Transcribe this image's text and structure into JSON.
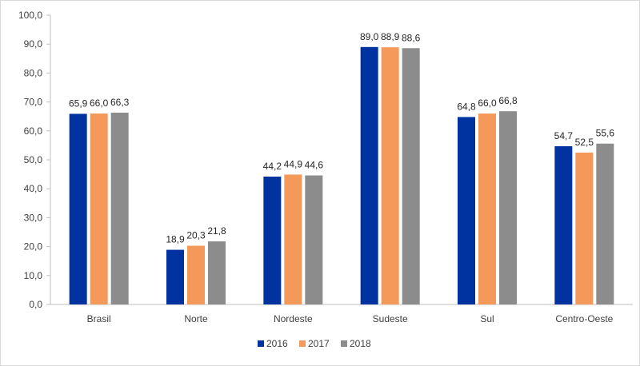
{
  "chart_data": {
    "type": "bar",
    "title": "",
    "xlabel": "",
    "ylabel": "",
    "categories": [
      "Brasil",
      "Norte",
      "Nordeste",
      "Sudeste",
      "Sul",
      "Centro-Oeste"
    ],
    "series": [
      {
        "name": "2016",
        "color": "#0033a0",
        "values": [
          65.9,
          18.9,
          44.2,
          89.0,
          64.8,
          54.7
        ],
        "labels": [
          "65,9",
          "18,9",
          "44,2",
          "89,0",
          "64,8",
          "54,7"
        ]
      },
      {
        "name": "2017",
        "color": "#f4995a",
        "values": [
          66.0,
          20.3,
          44.9,
          88.9,
          66.0,
          52.5
        ],
        "labels": [
          "66,0",
          "20,3",
          "44,9",
          "88,9",
          "66,0",
          "52,5"
        ]
      },
      {
        "name": "2018",
        "color": "#8c8c8c",
        "values": [
          66.3,
          21.8,
          44.6,
          88.6,
          66.8,
          55.6
        ],
        "labels": [
          "66,3",
          "21,8",
          "44,6",
          "88,6",
          "66,8",
          "55,6"
        ]
      }
    ],
    "ylim": [
      0,
      100
    ],
    "yticks": [
      "0,0",
      "10,0",
      "20,0",
      "30,0",
      "40,0",
      "50,0",
      "60,0",
      "70,0",
      "80,0",
      "90,0",
      "100,0"
    ],
    "grid": false,
    "legend_position": "bottom"
  }
}
